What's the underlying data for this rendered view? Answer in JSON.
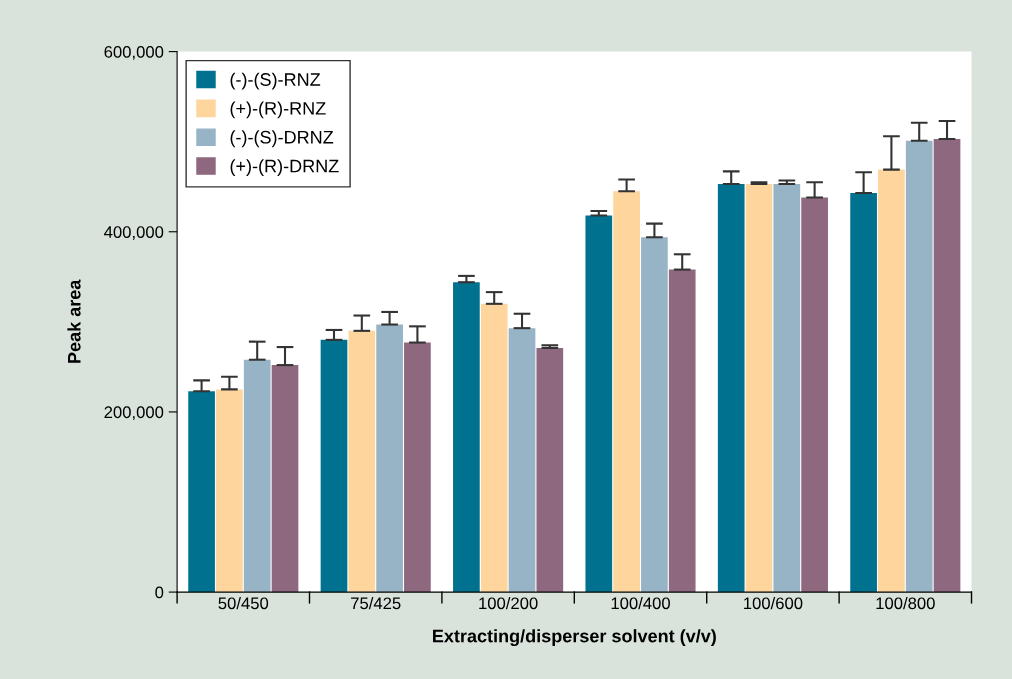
{
  "chart_data": {
    "type": "bar",
    "xlabel": "Extracting/disperser solvent (v/v)",
    "ylabel": "Peak area",
    "categories": [
      "50/450",
      "75/425",
      "100/200",
      "100/400",
      "100/600",
      "100/800"
    ],
    "series": [
      {
        "name": "(-)-(S)-RNZ",
        "color": "#00728f",
        "values": [
          223000,
          280000,
          344000,
          418000,
          453000,
          443000
        ],
        "errors": [
          [
            223000,
            235000
          ],
          [
            280000,
            291000
          ],
          [
            344000,
            351000
          ],
          [
            418000,
            423000
          ],
          [
            453000,
            467000
          ],
          [
            443000,
            466000
          ]
        ]
      },
      {
        "name": "(+)-(R)-RNZ",
        "color": "#fdd59d",
        "values": [
          225000,
          290000,
          320000,
          445000,
          453000,
          469000
        ],
        "errors": [
          [
            225000,
            239000
          ],
          [
            290000,
            307000
          ],
          [
            320000,
            333000
          ],
          [
            445000,
            458000
          ],
          [
            453000,
            455000
          ],
          [
            469000,
            506000
          ]
        ]
      },
      {
        "name": "(-)-(S)-DRNZ",
        "color": "#96b4c5",
        "values": [
          258000,
          297000,
          293000,
          394000,
          453000,
          501000
        ],
        "errors": [
          [
            258000,
            278000
          ],
          [
            297000,
            311000
          ],
          [
            293000,
            309000
          ],
          [
            394000,
            409000
          ],
          [
            453000,
            457000
          ],
          [
            501000,
            521000
          ]
        ]
      },
      {
        "name": "(+)-(R)-DRNZ",
        "color": "#8e687e",
        "values": [
          252000,
          277000,
          271000,
          358000,
          438000,
          503000
        ],
        "errors": [
          [
            252000,
            272000
          ],
          [
            277000,
            295000
          ],
          [
            271000,
            274000
          ],
          [
            358000,
            375000
          ],
          [
            438000,
            455000
          ],
          [
            503000,
            523000
          ]
        ]
      }
    ],
    "ylim": [
      0,
      600000
    ],
    "yticks": [
      {
        "value": 0,
        "label": "0"
      },
      {
        "value": 200000,
        "label": "200,000"
      },
      {
        "value": 400000,
        "label": "400,000"
      },
      {
        "value": 600000,
        "label": "600,000"
      }
    ],
    "legend": "top left",
    "grid": false
  }
}
